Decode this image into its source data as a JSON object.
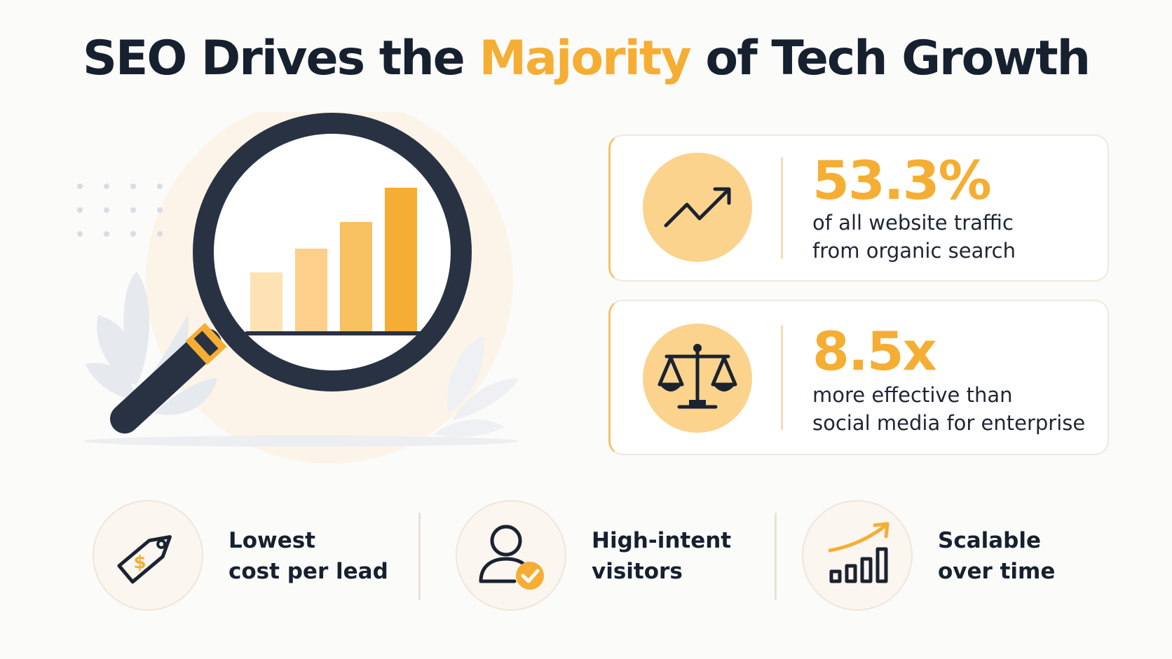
{
  "title": {
    "before": "SEO Drives the ",
    "accent": "Majority",
    "after": " of Tech Growth"
  },
  "colors": {
    "accent": "#f5ae33",
    "dark": "#17202e",
    "bar_light": "#fde2b4",
    "bar_mid": "#fbc96f",
    "bar_dark": "#f5ae33"
  },
  "hero": {
    "icon": "magnifying-glass-bar-chart-icon"
  },
  "stats": [
    {
      "icon": "trend-up-arrow-icon",
      "value": "53.3%",
      "line1": "of all website traffic",
      "line2": "from organic search"
    },
    {
      "icon": "balance-scale-icon",
      "value": "8.5x",
      "line1": "more effective than",
      "line2": "social media for enterprise"
    }
  ],
  "features": [
    {
      "icon": "price-tag-dollar-icon",
      "line1": "Lowest",
      "line2": "cost per lead"
    },
    {
      "icon": "user-check-icon",
      "line1": "High-intent",
      "line2": "visitors"
    },
    {
      "icon": "growth-chart-arrow-icon",
      "line1": "Scalable",
      "line2": "over time"
    }
  ]
}
